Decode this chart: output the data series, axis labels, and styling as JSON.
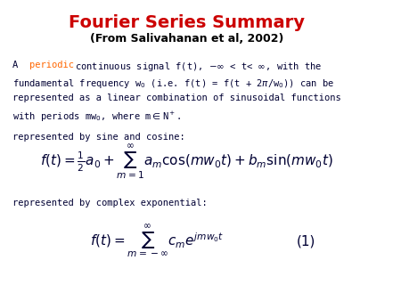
{
  "title": "Fourier Series Summary",
  "subtitle": "(From Salivahanan et al, 2002)",
  "title_color": "#CC0000",
  "subtitle_color": "#000000",
  "body_color": "#000033",
  "periodic_color": "#FF6600",
  "paragraph1_parts": [
    {
      "text": "A ",
      "color": "#000033",
      "style": "normal"
    },
    {
      "text": "periodic",
      "color": "#FF6600",
      "style": "normal"
    },
    {
      "text": " continuous signal f(t), -",
      "color": "#000033",
      "style": "normal"
    }
  ],
  "eq1_label": "represented by sine and cosine:",
  "eq1_latex": "f(t) = \\frac{1}{2}a_0 + \\sum_{m=1}^{\\infty} a_m \\cos(mw_0t) + b_m \\sin(mw_0t)",
  "eq2_label": "represented by complex exponential:",
  "eq2_latex": "f(t) = \\sum_{m=-\\infty}^{\\infty} c_m e^{jmw_0t}",
  "eq2_number": "(1)",
  "background_color": "#FFFFFF"
}
